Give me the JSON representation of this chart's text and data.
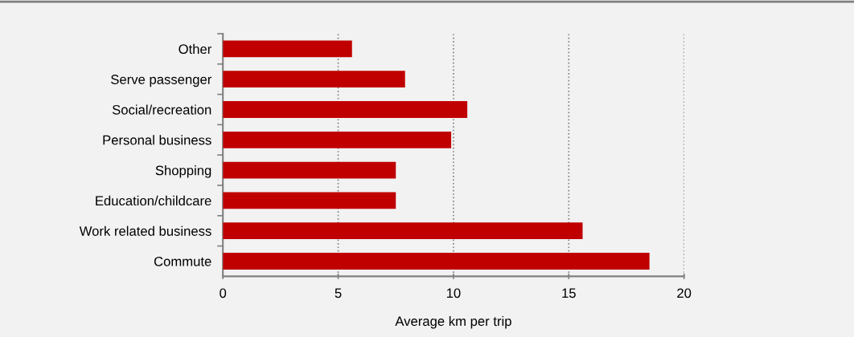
{
  "chart_data": {
    "type": "bar",
    "orientation": "horizontal",
    "categories": [
      "Other",
      "Serve passenger",
      "Social/recreation",
      "Personal business",
      "Shopping",
      "Education/childcare",
      "Work related business",
      "Commute"
    ],
    "values": [
      5.6,
      7.9,
      10.6,
      9.9,
      7.5,
      7.5,
      15.6,
      18.5
    ],
    "color": "#c00000",
    "xlabel": "Average km per trip",
    "xlim": [
      0,
      20
    ],
    "xticks": [
      0,
      5,
      10,
      15,
      20
    ],
    "grid": "x"
  }
}
